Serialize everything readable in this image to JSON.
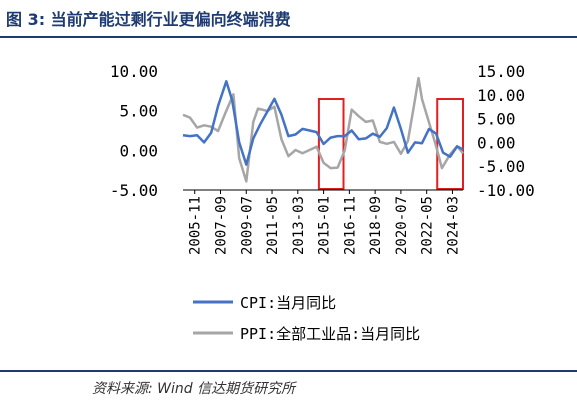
{
  "header": {
    "title": "图 3: 当前产能过剩行业更偏向终端消费"
  },
  "footer": {
    "source": "资料来源:  Wind 信达期货研究所"
  },
  "colors": {
    "cpi": "#4472c4",
    "ppi": "#a6a6a6",
    "highlight": "#e02020",
    "title": "#1f3b73"
  },
  "chart_data": {
    "type": "line",
    "xlabels": [
      "2005-11",
      "2007-09",
      "2009-07",
      "2011-05",
      "2013-03",
      "2015-01",
      "2016-11",
      "2018-09",
      "2020-07",
      "2022-05",
      "2024-03"
    ],
    "x_start": "2005-01",
    "x_end": "2024-12",
    "y_left": {
      "ticks": [
        "10.00",
        "5.00",
        "0.00",
        "-5.00"
      ],
      "range": [
        -5,
        10
      ]
    },
    "y_right": {
      "ticks": [
        "15.00",
        "10.00",
        "5.00",
        "0.00",
        "-5.00",
        "-10.00"
      ],
      "range": [
        -10,
        15
      ]
    },
    "highlight_ranges": [
      {
        "from": "2014-09",
        "to": "2016-06"
      },
      {
        "from": "2023-02",
        "to": "2024-12"
      }
    ],
    "series": [
      {
        "name": "CPI:当月同比",
        "axis": "left",
        "x": [
          "2005-01",
          "2005-07",
          "2006-01",
          "2006-07",
          "2007-01",
          "2007-07",
          "2008-02",
          "2008-07",
          "2009-01",
          "2009-07",
          "2010-01",
          "2010-07",
          "2011-01",
          "2011-07",
          "2012-01",
          "2012-07",
          "2013-01",
          "2013-07",
          "2014-01",
          "2014-07",
          "2015-01",
          "2015-07",
          "2016-01",
          "2016-07",
          "2017-01",
          "2017-07",
          "2018-01",
          "2018-07",
          "2019-01",
          "2019-07",
          "2020-01",
          "2020-07",
          "2021-01",
          "2021-07",
          "2022-01",
          "2022-07",
          "2023-01",
          "2023-07",
          "2024-01",
          "2024-07",
          "2024-12"
        ],
        "y": [
          1.9,
          1.8,
          1.9,
          1.0,
          2.2,
          5.6,
          8.7,
          6.3,
          1.0,
          -1.8,
          1.5,
          3.3,
          4.9,
          6.5,
          4.5,
          1.8,
          2.0,
          2.7,
          2.5,
          2.3,
          0.8,
          1.6,
          1.8,
          1.8,
          2.5,
          1.4,
          1.5,
          2.1,
          1.7,
          2.8,
          5.4,
          2.7,
          -0.3,
          1.0,
          0.9,
          2.7,
          2.1,
          -0.3,
          -0.8,
          0.5,
          0.1
        ]
      },
      {
        "name": "PPI:全部工业品:当月同比",
        "axis": "right",
        "x": [
          "2005-01",
          "2005-07",
          "2006-01",
          "2006-07",
          "2007-01",
          "2007-07",
          "2008-01",
          "2008-08",
          "2009-01",
          "2009-07",
          "2010-01",
          "2010-05",
          "2011-01",
          "2011-07",
          "2012-01",
          "2012-07",
          "2013-01",
          "2013-07",
          "2014-01",
          "2014-07",
          "2015-01",
          "2015-07",
          "2016-01",
          "2016-07",
          "2017-01",
          "2017-07",
          "2018-01",
          "2018-07",
          "2019-01",
          "2019-07",
          "2020-01",
          "2020-07",
          "2021-01",
          "2021-07",
          "2021-10",
          "2022-01",
          "2022-07",
          "2023-01",
          "2023-06",
          "2024-01",
          "2024-07",
          "2024-12"
        ],
        "y": [
          5.8,
          5.2,
          3.1,
          3.6,
          3.3,
          2.4,
          6.1,
          10.1,
          -3.3,
          -8.2,
          4.3,
          7.1,
          6.6,
          7.5,
          0.7,
          -2.9,
          -1.6,
          -2.3,
          -1.6,
          -0.9,
          -4.3,
          -5.4,
          -5.3,
          -1.7,
          6.9,
          5.5,
          4.3,
          4.6,
          0.1,
          -0.3,
          0.1,
          -2.4,
          0.3,
          9.0,
          13.5,
          9.1,
          4.2,
          -0.8,
          -5.4,
          -2.5,
          -0.8,
          -2.3
        ]
      }
    ],
    "grid": false,
    "legend": "bottom"
  }
}
